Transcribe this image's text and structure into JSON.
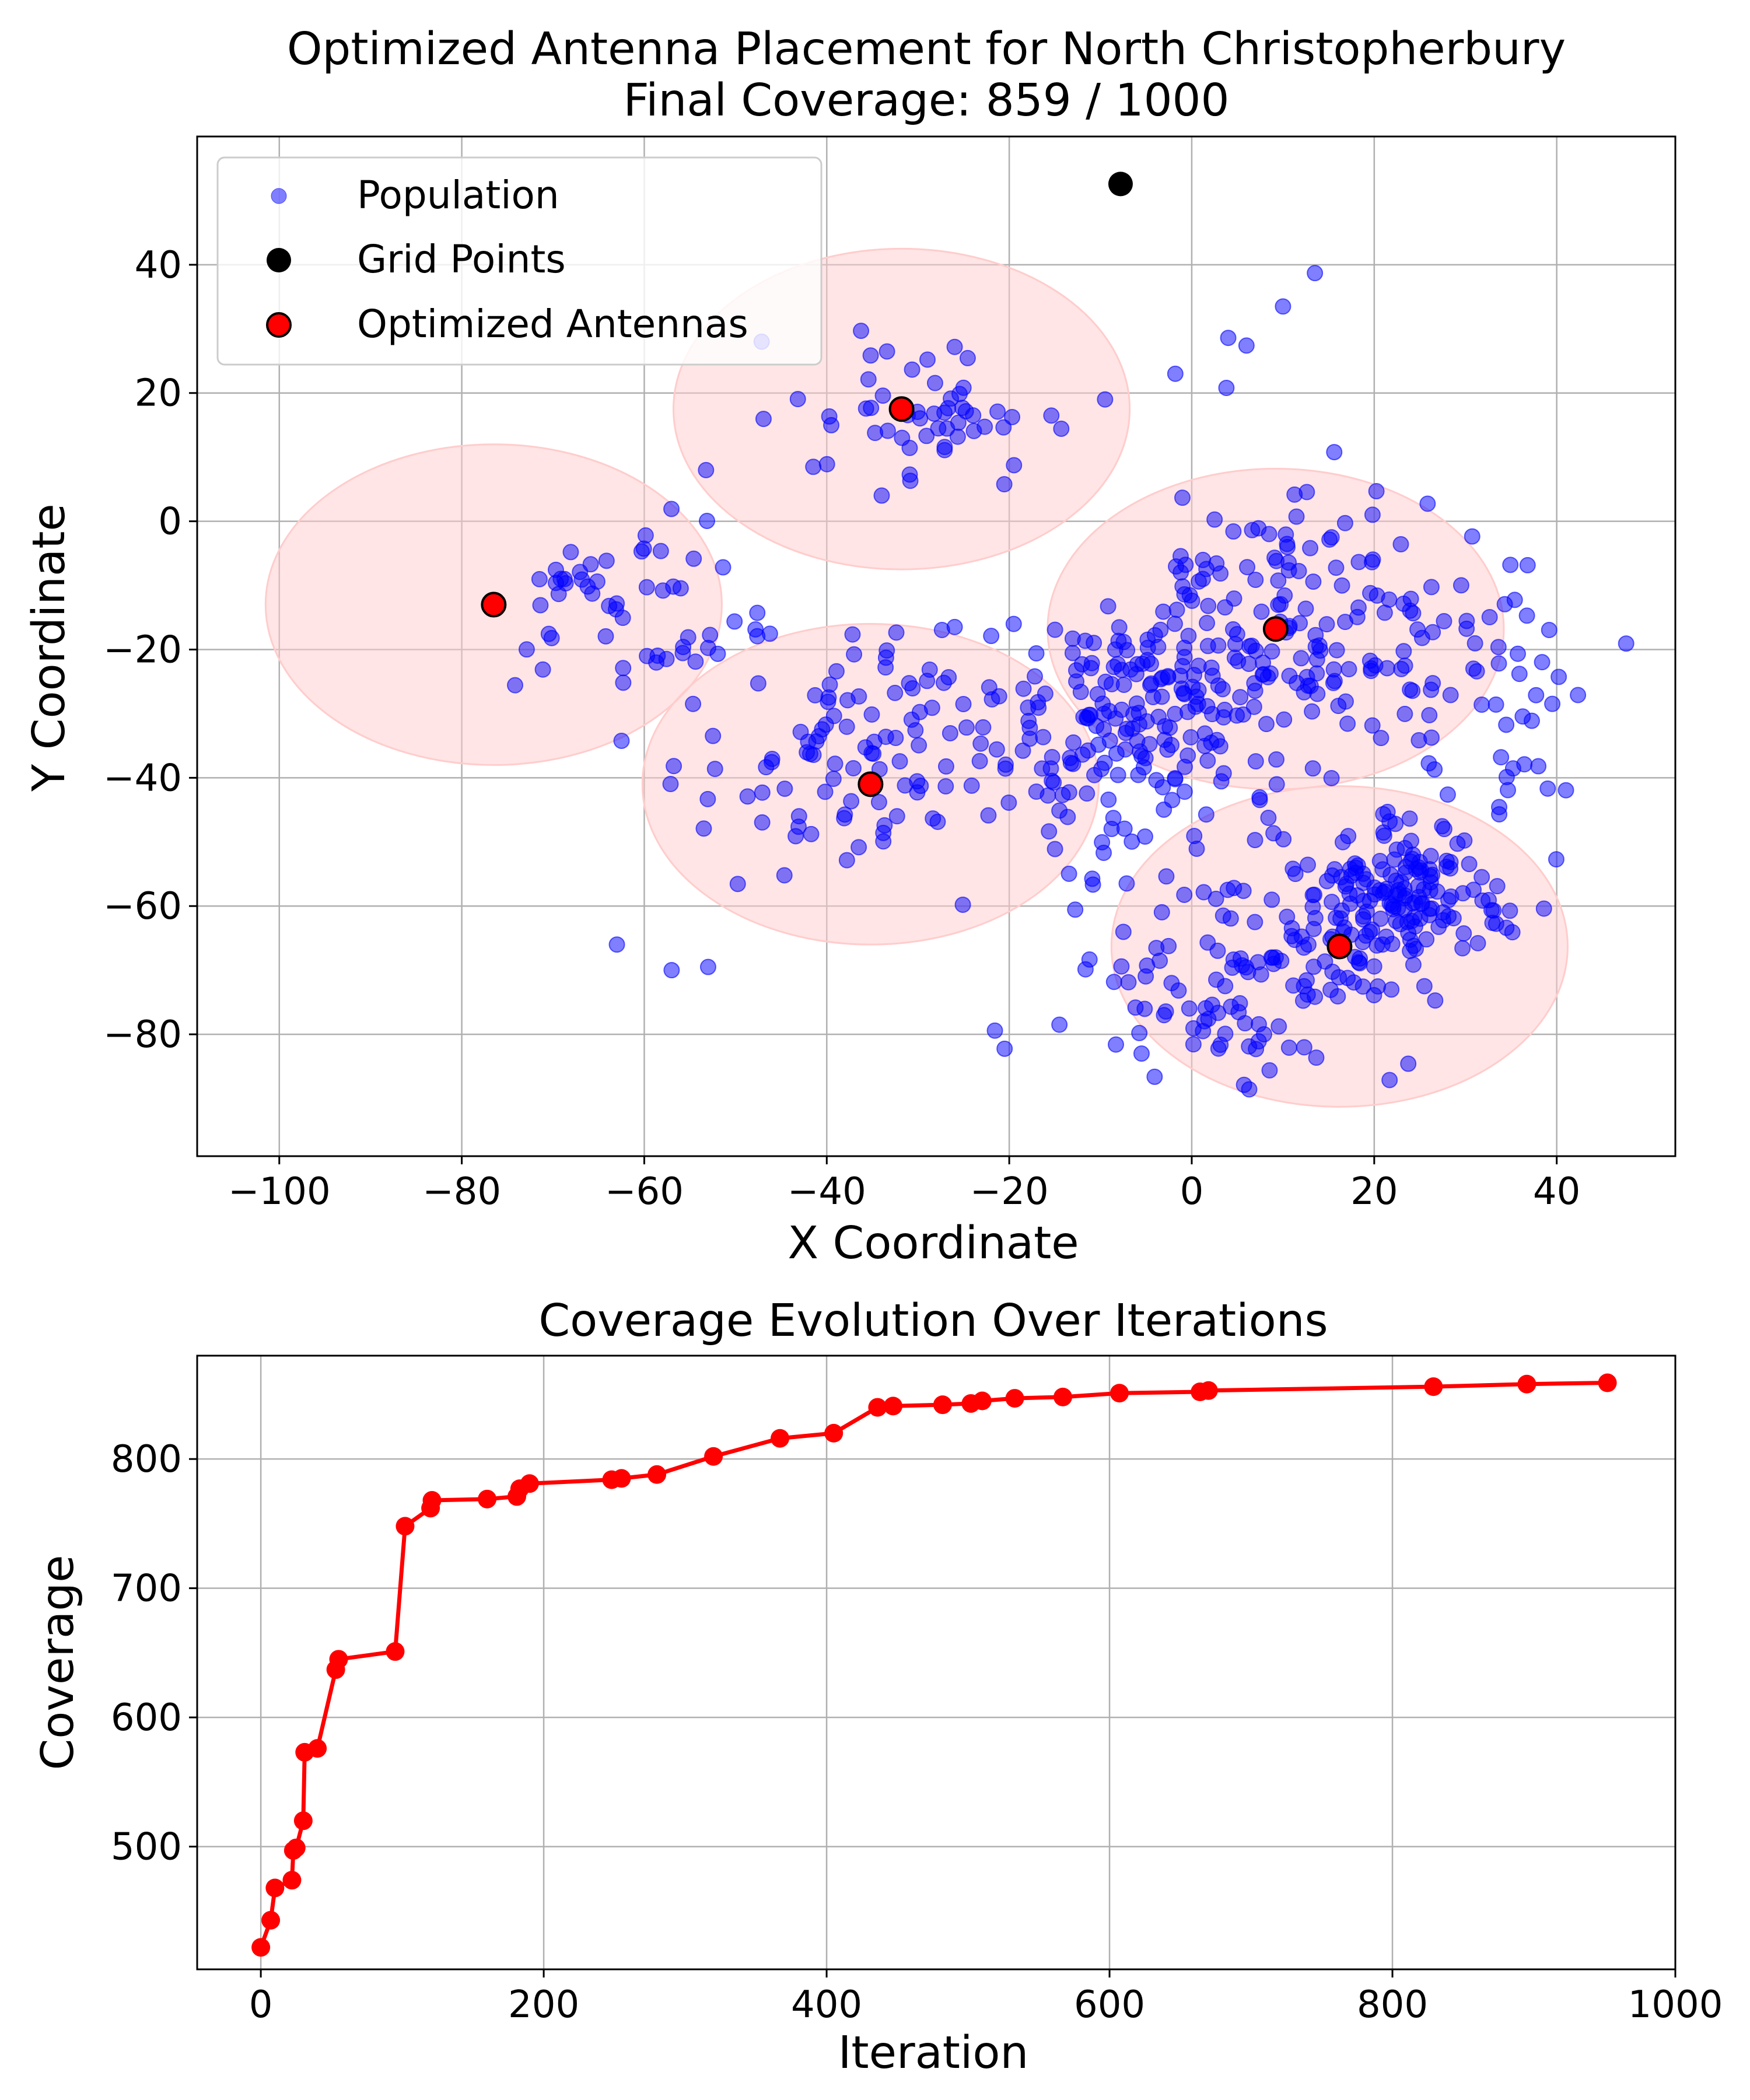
{
  "colors": {
    "population": "#0000ff",
    "grid_point": "#000000",
    "antenna": "#ff0000",
    "coverage_area": "#ffcccc",
    "evolution_line": "#ff0000"
  },
  "chart_data": [
    {
      "type": "scatter",
      "title": "Optimized Antenna Placement for North Christopherbury",
      "subtitle": "Final Coverage: 859 / 1000",
      "xlabel": "X Coordinate",
      "ylabel": "Y Coordinate",
      "xlim": [
        -109,
        53
      ],
      "ylim": [
        -99,
        60
      ],
      "xticks": [
        -100,
        -80,
        -60,
        -40,
        -20,
        0,
        20,
        40
      ],
      "yticks": [
        -80,
        -60,
        -40,
        -20,
        0,
        20,
        40
      ],
      "xtick_labels": [
        "−100",
        "−80",
        "−60",
        "−40",
        "−20",
        "0",
        "20",
        "40"
      ],
      "ytick_labels": [
        "−80",
        "−60",
        "−40",
        "−20",
        "0",
        "20",
        "40"
      ],
      "grid": true,
      "legend_position": "top-left",
      "legend": [
        "Population",
        "Grid Points",
        "Optimized Antennas"
      ],
      "coverage_radius": 25,
      "antennas": [
        {
          "x": -76.5,
          "y": -13.0
        },
        {
          "x": -31.8,
          "y": 17.5
        },
        {
          "x": -35.2,
          "y": -41.0
        },
        {
          "x": 9.2,
          "y": -16.8
        },
        {
          "x": 16.2,
          "y": -66.3
        }
      ],
      "grid_points": [
        {
          "x": -7.8,
          "y": 52.6
        }
      ],
      "population_clusters": [
        {
          "cx": 22,
          "cy": -58,
          "sx": 6,
          "sy": 6,
          "n": 170
        },
        {
          "cx": -5,
          "cy": -32,
          "sx": 9,
          "sy": 9,
          "n": 190
        },
        {
          "cx": 12,
          "cy": -15,
          "sx": 12,
          "sy": 10,
          "n": 150
        },
        {
          "cx": 5,
          "cy": -70,
          "sx": 10,
          "sy": 8,
          "n": 110
        },
        {
          "cx": -38,
          "cy": -38,
          "sx": 8,
          "sy": 10,
          "n": 100
        },
        {
          "cx": -30,
          "cy": 17,
          "sx": 7,
          "sy": 6,
          "n": 55
        },
        {
          "cx": -60,
          "cy": -15,
          "sx": 7,
          "sy": 8,
          "n": 45
        },
        {
          "cx": 32,
          "cy": -30,
          "sx": 7,
          "sy": 12,
          "n": 40
        },
        {
          "cx": -68,
          "cy": -8,
          "sx": 3,
          "sy": 3,
          "n": 12
        }
      ],
      "population_outliers": [
        {
          "x": 13.5,
          "y": 38.7
        },
        {
          "x": 10,
          "y": 33.5
        },
        {
          "x": 4,
          "y": 28.6
        },
        {
          "x": 6,
          "y": 27.4
        },
        {
          "x": -1.8,
          "y": 23
        },
        {
          "x": 3.8,
          "y": 20.8
        },
        {
          "x": -9.5,
          "y": 19
        },
        {
          "x": -63,
          "y": -66
        },
        {
          "x": -57,
          "y": -70
        },
        {
          "x": -53,
          "y": -69.5
        },
        {
          "x": -14.5,
          "y": -78.5
        },
        {
          "x": -5.5,
          "y": -83
        }
      ]
    },
    {
      "type": "line",
      "title": "Coverage Evolution Over Iterations",
      "xlabel": "Iteration",
      "ylabel": "Coverage",
      "xlim": [
        -45,
        1000
      ],
      "ylim": [
        405,
        880
      ],
      "xticks": [
        0,
        200,
        400,
        600,
        800,
        1000
      ],
      "yticks": [
        500,
        600,
        700,
        800
      ],
      "xtick_labels": [
        "0",
        "200",
        "400",
        "600",
        "800",
        "1000"
      ],
      "ytick_labels": [
        "500",
        "600",
        "700",
        "800"
      ],
      "grid": true,
      "x": [
        0,
        7,
        10,
        22,
        23,
        25,
        30,
        31,
        40,
        53,
        55,
        95,
        102,
        120,
        121,
        160,
        181,
        183,
        190,
        248,
        255,
        280,
        320,
        367,
        405,
        436,
        447,
        482,
        502,
        510,
        533,
        567,
        607,
        664,
        670,
        829,
        895,
        952
      ],
      "y": [
        422,
        443,
        468,
        474,
        497,
        499,
        520,
        573,
        576,
        637,
        645,
        651,
        748,
        762,
        768,
        769,
        771,
        777,
        781,
        784,
        785,
        788,
        802,
        816,
        820,
        840,
        841,
        842,
        843,
        845,
        847,
        848,
        851,
        852,
        853,
        856,
        858,
        859
      ]
    }
  ]
}
